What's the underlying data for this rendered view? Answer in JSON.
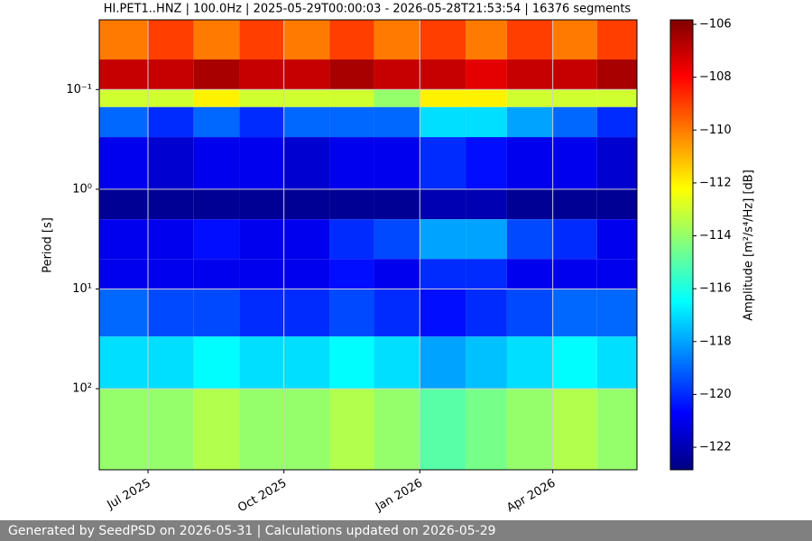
{
  "chart_data": {
    "type": "spectrogram",
    "title": "HI.PET1..HNZ | 100.0Hz | 2025-05-29T00:00:03 - 2026-05-28T21:53:54 | 16376 segments",
    "ylabel": "Period [s]",
    "colorbar_label": "Amplitude [m²/s⁴/Hz] [dB]",
    "footer": "Generated by SeedPSD on 2026-05-31 | Calculations updated on 2026-05-29",
    "colormap": "jet",
    "log_y": true,
    "grid": true,
    "xlim": [
      "2025-05-29",
      "2026-05-28"
    ],
    "xticks": [
      {
        "value": "2025-07-01",
        "label": "Jul 2025"
      },
      {
        "value": "2025-10-01",
        "label": "Oct 2025"
      },
      {
        "value": "2026-01-01",
        "label": "Jan 2026"
      },
      {
        "value": "2026-04-01",
        "label": "Apr 2026"
      }
    ],
    "ylim": [
      650,
      0.02
    ],
    "yticks": [
      {
        "value": 0.1,
        "label": "10⁻¹"
      },
      {
        "value": 1,
        "label": "10⁰"
      },
      {
        "value": 10,
        "label": "10¹"
      },
      {
        "value": 100,
        "label": "10²"
      }
    ],
    "clim": [
      -122.85,
      -105.83
    ],
    "cticks": [
      {
        "value": -122,
        "label": "−122"
      },
      {
        "value": -120,
        "label": "−120"
      },
      {
        "value": -118,
        "label": "−118"
      },
      {
        "value": -116,
        "label": "−116"
      },
      {
        "value": -114,
        "label": "−114"
      },
      {
        "value": -112,
        "label": "−112"
      },
      {
        "value": -110,
        "label": "−110"
      },
      {
        "value": -108,
        "label": "−108"
      },
      {
        "value": -106,
        "label": "−106"
      }
    ],
    "xbins": [
      "2025-05-29",
      "2025-07-01",
      "2025-08-01",
      "2025-09-01",
      "2025-10-01",
      "2025-11-01",
      "2025-12-01",
      "2026-01-01",
      "2026-02-01",
      "2026-03-01",
      "2026-04-01",
      "2026-05-01",
      "2026-05-28"
    ],
    "ybins": [
      0.02,
      0.05,
      0.1,
      0.15,
      0.3,
      1,
      2,
      5,
      10,
      30,
      100,
      650
    ],
    "values": [
      [
        -110,
        -109,
        -110,
        -109,
        -110,
        -109,
        -110,
        -109,
        -110,
        -109,
        -110,
        -109
      ],
      [
        -107,
        -107,
        -106.5,
        -107,
        -107,
        -106.5,
        -107,
        -107,
        -107.5,
        -107,
        -107,
        -106.5
      ],
      [
        -113,
        -113,
        -112,
        -113,
        -113,
        -113,
        -114,
        -112,
        -112,
        -113,
        -113,
        -113
      ],
      [
        -119,
        -120,
        -119,
        -120,
        -119,
        -119,
        -119,
        -117,
        -117,
        -118,
        -119,
        -120
      ],
      [
        -121,
        -121.5,
        -121,
        -121,
        -121.5,
        -121,
        -121,
        -120,
        -120.5,
        -121,
        -121,
        -121.5
      ],
      [
        -122.5,
        -122.5,
        -122.5,
        -122.5,
        -122.5,
        -122.5,
        -122.5,
        -122,
        -122,
        -122.5,
        -122.5,
        -122.5
      ],
      [
        -121,
        -121,
        -120.5,
        -121,
        -121,
        -120,
        -119.5,
        -118,
        -118,
        -119.5,
        -120,
        -121
      ],
      [
        -121,
        -121,
        -121,
        -121,
        -121,
        -120.5,
        -121,
        -120,
        -120,
        -121,
        -121,
        -121
      ],
      [
        -119,
        -119.5,
        -119.5,
        -120,
        -120,
        -119.5,
        -120,
        -120.5,
        -120,
        -119.5,
        -119,
        -119
      ],
      [
        -117,
        -117,
        -116.5,
        -117,
        -117,
        -116.5,
        -117,
        -118,
        -117.5,
        -117,
        -116.5,
        -117
      ],
      [
        -114,
        -114,
        -113.5,
        -114,
        -114,
        -113.5,
        -114,
        -115,
        -114.5,
        -114,
        -113.5,
        -114
      ]
    ]
  }
}
